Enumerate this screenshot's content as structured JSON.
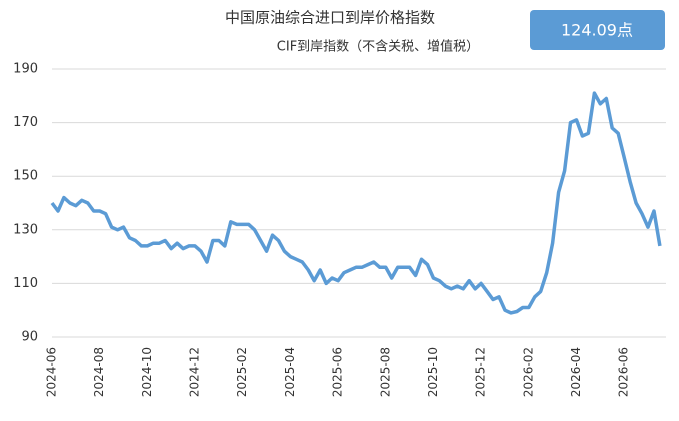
{
  "chart_data": {
    "type": "line",
    "title": "中国原油综合进口到岸价格指数",
    "subtitle": "CIF到岸指数（不含关税、增值税）",
    "annotation": "124.09点",
    "categories": [
      "2024-06",
      null,
      null,
      null,
      null,
      null,
      null,
      null,
      "2024-08",
      null,
      null,
      null,
      null,
      null,
      null,
      null,
      "2024-10",
      null,
      null,
      null,
      null,
      null,
      null,
      null,
      "2024-12",
      null,
      null,
      null,
      null,
      null,
      null,
      null,
      "2025-02",
      null,
      null,
      null,
      null,
      null,
      null,
      null,
      "2025-04",
      null,
      null,
      null,
      null,
      null,
      null,
      null,
      "2025-06",
      null,
      null,
      null,
      null,
      null,
      null,
      null,
      "2025-08",
      null,
      null,
      null,
      null,
      null,
      null,
      null,
      "2025-10",
      null,
      null,
      null,
      null,
      null,
      null,
      null,
      "2025-12",
      null,
      null,
      null,
      null,
      null,
      null,
      null,
      "2026-02",
      null,
      null,
      null,
      null,
      null,
      null,
      null,
      "2026-04",
      null,
      null,
      null,
      null,
      null,
      null,
      null,
      "2026-06",
      null,
      null,
      null,
      null,
      null,
      null
    ],
    "series": [
      {
        "name": "CIF到岸指数",
        "color": "#5b9bd5",
        "values": [
          140,
          137,
          142,
          140,
          139,
          141,
          140,
          137,
          137,
          136,
          131,
          130,
          131,
          127,
          126,
          124,
          124,
          125,
          125,
          126,
          123,
          125,
          123,
          124,
          124,
          122,
          118,
          126,
          126,
          124,
          133,
          132,
          132,
          132,
          130,
          126,
          122,
          128,
          126,
          122,
          120,
          119,
          118,
          115,
          111,
          115,
          110,
          112,
          111,
          114,
          115,
          116,
          116,
          117,
          118,
          116,
          116,
          112,
          116,
          116,
          116,
          113,
          119,
          117,
          112,
          111,
          109,
          108,
          109,
          108,
          111,
          108,
          110,
          107,
          104,
          105,
          100,
          99,
          99.5,
          101,
          101,
          105,
          107,
          114,
          125,
          144,
          152,
          170,
          171,
          165,
          166,
          181,
          177,
          179,
          168,
          166,
          157,
          148,
          140,
          136,
          131,
          137,
          124
        ]
      }
    ],
    "ylim": [
      90,
      190
    ],
    "yticks": [
      90,
      110,
      130,
      150,
      170,
      190
    ],
    "grid": true
  }
}
